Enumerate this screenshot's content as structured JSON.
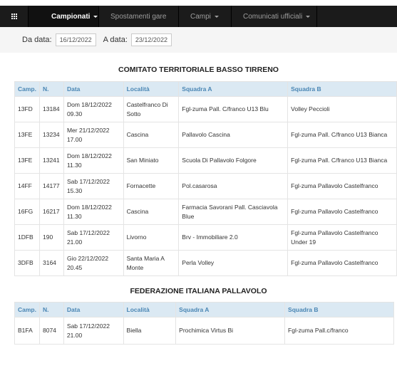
{
  "nav": {
    "items": [
      {
        "label": "Campionati",
        "dropdown": true,
        "active": true
      },
      {
        "label": "Spostamenti gare",
        "dropdown": false,
        "active": false
      },
      {
        "label": "Campi",
        "dropdown": true,
        "active": false
      },
      {
        "label": "Comunicati ufficiali",
        "dropdown": true,
        "active": false
      }
    ],
    "icon": "grid-icon"
  },
  "filters": {
    "from_label": "Da data:",
    "from_value": "16/12/2022",
    "to_label": "A data:",
    "to_value": "23/12/2022"
  },
  "headers": [
    "Camp.",
    "N.",
    "Data",
    "Località",
    "Squadra A",
    "Squadra B"
  ],
  "sections": [
    {
      "title": "COMITATO TERRITORIALE BASSO TIRRENO",
      "rows": [
        {
          "camp": "13FD",
          "n": "13184",
          "date": "Dom 18/12/2022",
          "time": "09.30",
          "loc": "Castelfranco Di Sotto",
          "a": "Fgl-zuma Pall. C/franco U13 Blu",
          "b": "Volley Peccioli"
        },
        {
          "camp": "13FE",
          "n": "13234",
          "date": "Mer 21/12/2022",
          "time": "17.00",
          "loc": "Cascina",
          "a": "Pallavolo Cascina",
          "b": "Fgl-zuma Pall. C/franco U13 Bianca"
        },
        {
          "camp": "13FE",
          "n": "13241",
          "date": "Dom 18/12/2022",
          "time": "11.30",
          "loc": "San Miniato",
          "a": "Scuola Di Pallavolo Folgore",
          "b": "Fgl-zuma Pall. C/franco U13 Bianca"
        },
        {
          "camp": "14FF",
          "n": "14177",
          "date": "Sab 17/12/2022",
          "time": "15.30",
          "loc": "Fornacette",
          "a": "Pol.casarosa",
          "b": "Fgl-zuma Pallavolo Castelfranco"
        },
        {
          "camp": "16FG",
          "n": "16217",
          "date": "Dom 18/12/2022",
          "time": "11.30",
          "loc": "Cascina",
          "a": "Farmacia Savorani Pall. Casciavola Blue",
          "b": "Fgl-zuma Pallavolo Castelfranco"
        },
        {
          "camp": "1DFB",
          "n": "190",
          "date": "Sab 17/12/2022",
          "time": "21.00",
          "loc": "Livorno",
          "a": "Brv - Immobiliare 2.0",
          "b": "Fgl-zuma Pallavolo Castelfranco Under 19"
        },
        {
          "camp": "3DFB",
          "n": "3164",
          "date": "Gio 22/12/2022",
          "time": "20.45",
          "loc": "Santa Maria A Monte",
          "a": "Perla Volley",
          "b": "Fgl-zuma Pallavolo Castelfranco"
        }
      ]
    },
    {
      "title": "FEDERAZIONE ITALIANA PALLAVOLO",
      "rows": [
        {
          "camp": "B1FA",
          "n": "8074",
          "date": "Sab 17/12/2022",
          "time": "21.00",
          "loc": "Biella",
          "a": "Prochimica Virtus Bi",
          "b": "Fgl-zuma Pall.c/franco"
        }
      ]
    }
  ]
}
